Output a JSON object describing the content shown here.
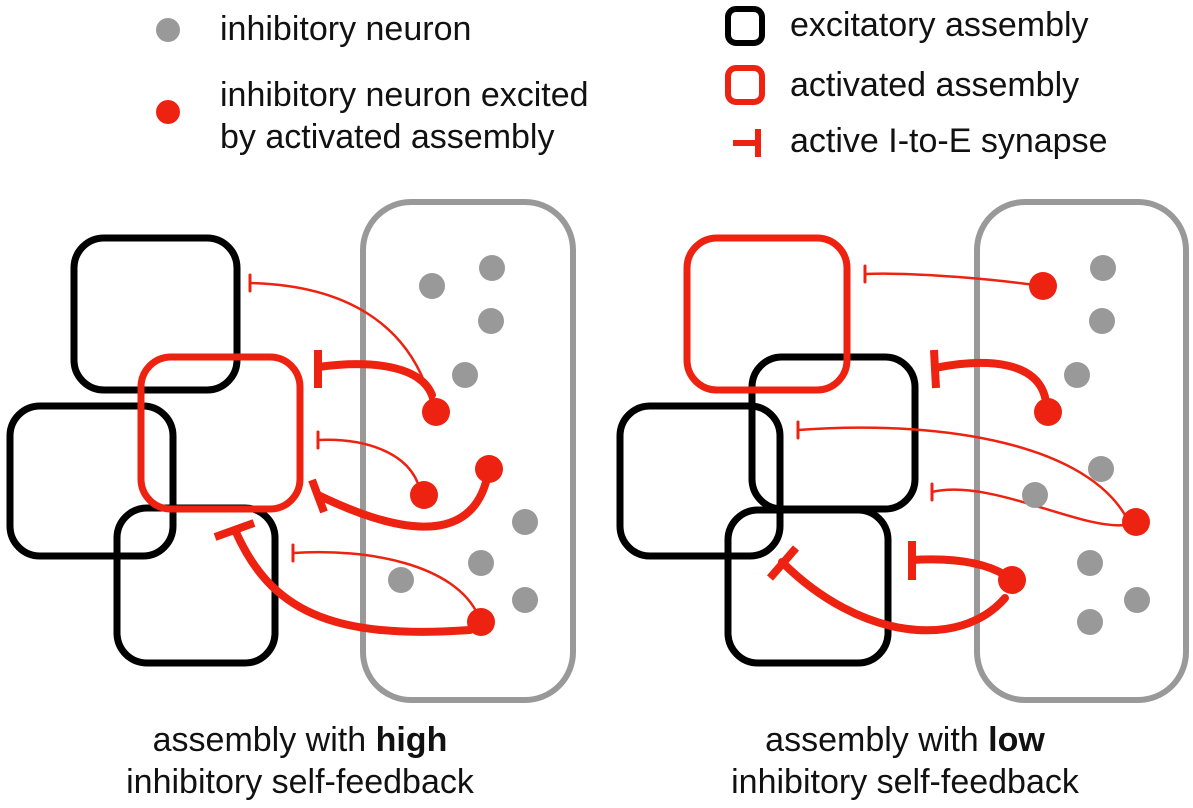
{
  "colors": {
    "inhibitory_neuron": "#999999",
    "excited_neuron": "#ee2211",
    "excitatory_assembly": "#000000",
    "activated_assembly": "#ee2211",
    "pool_outline": "#999999"
  },
  "legend": {
    "inhibitory_neuron": "inhibitory neuron",
    "excited_neuron_line1": "inhibitory neuron excited",
    "excited_neuron_line2": "by activated assembly",
    "excitatory_assembly": "excitatory assembly",
    "activated_assembly": "activated assembly",
    "active_synapse": "active I-to-E synapse"
  },
  "panels": {
    "high": {
      "caption_line1_prefix": "assembly with ",
      "caption_line1_bold": "high",
      "caption_line2": "inhibitory self-feedback"
    },
    "low": {
      "caption_line1_prefix": "assembly with ",
      "caption_line1_bold": "low",
      "caption_line2": "inhibitory self-feedback"
    }
  }
}
